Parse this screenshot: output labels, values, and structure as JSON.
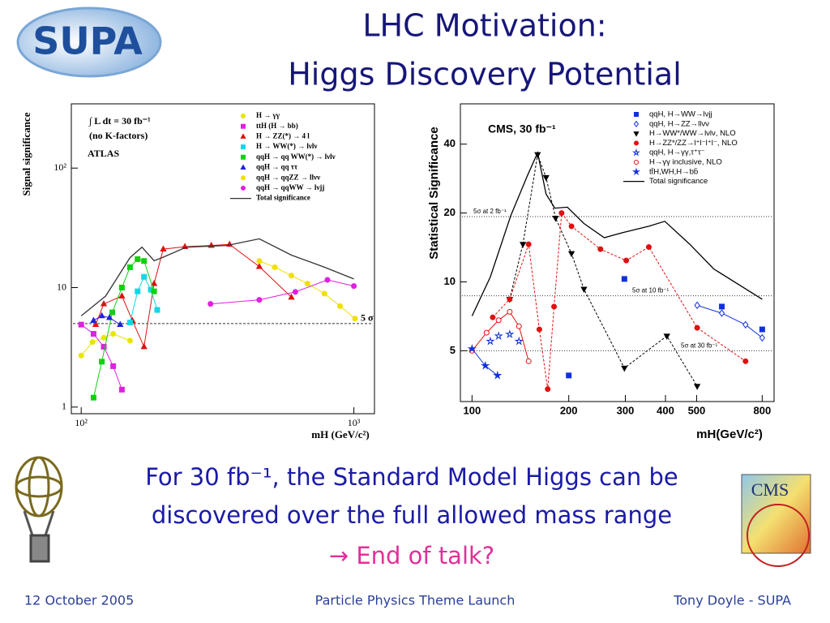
{
  "slide": {
    "logo": "SUPA",
    "title": [
      "LHC Motivation:",
      "Higgs Discovery Potential"
    ],
    "body": [
      "For 30 fb⁻¹, the Standard Model Higgs can be",
      "discovered over the full allowed mass range"
    ],
    "conclusion": "→ End of talk?",
    "cms_logo": "CMS",
    "footer": {
      "date": "12 October 2005",
      "event": "Particle Physics Theme Launch",
      "author": "Tony Doyle - SUPA"
    }
  },
  "chart_data": [
    {
      "type": "line",
      "log_x": true,
      "log_y": true,
      "x_label": "mH (GeV/c²)",
      "y_label": "Signal significance",
      "annotations": [
        "∫ L dt = 30 fb⁻¹",
        "(no K-factors)",
        "ATLAS"
      ],
      "xlim": [
        92,
        1190
      ],
      "ylim": [
        0.88,
        345
      ],
      "xticks": [
        {
          "value": 100,
          "label": "10²"
        },
        {
          "value": 1000,
          "label": "10³"
        }
      ],
      "yticks": [
        1,
        10,
        {
          "value": 100,
          "label": "10²"
        }
      ],
      "reference_lines": [
        {
          "value": 5,
          "label": "5 σ"
        }
      ],
      "series": [
        {
          "name": "H → γγ",
          "color": "#e6e600",
          "marker": "circle",
          "line_style": "solid",
          "x": [
            100,
            110,
            121,
            131,
            151
          ],
          "values": [
            2.7,
            3.5,
            3.8,
            4.1,
            3.6
          ]
        },
        {
          "name": "ttH (H → bb)",
          "color": "#e020e0",
          "marker": "square",
          "line_style": "solid",
          "x": [
            100,
            111,
            121,
            131,
            141
          ],
          "values": [
            4.9,
            4.1,
            3.2,
            2.2,
            1.4
          ]
        },
        {
          "name": "H → ZZ(*) → 4 l",
          "color": "#e01010",
          "marker": "triangle",
          "line_style": "solid",
          "x": [
            113,
            121,
            141,
            154,
            170,
            185,
            200,
            240,
            300,
            350,
            450,
            590
          ],
          "values": [
            4.9,
            7.3,
            8.5,
            5.3,
            3.2,
            10.8,
            21,
            22,
            22.5,
            23,
            15,
            8.3
          ]
        },
        {
          "name": "H → WW(*) → lνlν",
          "color": "#10d8e8",
          "marker": "square",
          "line_style": "solid",
          "x": [
            151,
            161,
            170,
            180,
            190
          ],
          "values": [
            5.1,
            9.3,
            12.3,
            9.6,
            6.5
          ]
        },
        {
          "name": "qqH → qq WW(*) → lνlν",
          "color": "#10d010",
          "marker": "square",
          "line_style": "solid",
          "x": [
            111,
            119,
            130,
            141,
            151,
            161,
            170,
            185
          ],
          "values": [
            1.2,
            2.4,
            6.2,
            10,
            14.8,
            17.3,
            16.7,
            9.3
          ]
        },
        {
          "name": "qqH → qq ττ",
          "color": "#2020e0",
          "marker": "triangle",
          "line_style": "solid",
          "x": [
            111,
            119,
            127,
            139
          ],
          "values": [
            5.3,
            5.8,
            5.6,
            4.9
          ]
        },
        {
          "name": "qqH → qqZZ → llνν",
          "color": "#f0e000",
          "marker": "circle",
          "line_style": "solid",
          "x": [
            450,
            513,
            590,
            676,
            780,
            890,
            1010
          ],
          "values": [
            16.7,
            14.8,
            12.6,
            10.8,
            8.9,
            7.0,
            5.5
          ]
        },
        {
          "name": "qqH → qqWW → lνjj",
          "color": "#e020e0",
          "marker": "circle",
          "line_style": "solid",
          "x": [
            298,
            450,
            610,
            800,
            1000
          ],
          "values": [
            7.3,
            7.9,
            9.2,
            11.6,
            10.3
          ]
        },
        {
          "name": "Total significance",
          "color": "#333333",
          "marker": "none",
          "line_style": "solid",
          "x": [
            100,
            123,
            151,
            167,
            185,
            198,
            243,
            342,
            450,
            590,
            780,
            1000
          ],
          "values": [
            5.8,
            8.5,
            17.8,
            21.8,
            16.8,
            17.8,
            21.8,
            22.5,
            25.6,
            18.7,
            14.8,
            11.8
          ]
        }
      ]
    },
    {
      "type": "line",
      "log_x": true,
      "log_y": true,
      "x_label": "mH(GeV/c²)",
      "y_label": "Statistical Significance",
      "annotations": [
        "CMS, 30 fb⁻¹"
      ],
      "xlim": [
        92,
        871
      ],
      "ylim": [
        3,
        60
      ],
      "xticks": [
        100,
        200,
        300,
        400,
        500,
        800
      ],
      "yticks": [
        5,
        10,
        20,
        40
      ],
      "reference_lines": [
        {
          "value": 19.3,
          "label": "5σ at 2 fb⁻¹"
        },
        {
          "value": 8.7,
          "label": "5σ at 10 fb⁻¹"
        },
        {
          "value": 5,
          "label": "5σ at 30 fb⁻¹"
        }
      ],
      "series": [
        {
          "name": "qqH, H→WW→lνjj",
          "color": "#1030e0",
          "marker": "square",
          "line_style": "none",
          "x": [
            200,
            298,
            599,
            800
          ],
          "values": [
            3.9,
            10.3,
            7.8,
            6.2
          ]
        },
        {
          "name": "qqH, H→ZZ→llνν",
          "color": "#1030e0",
          "marker": "diamond-open",
          "line_style": "solid",
          "x": [
            502,
            599,
            710,
            800
          ],
          "values": [
            7.9,
            7.3,
            6.5,
            5.7
          ]
        },
        {
          "name": "H→WW*/WW→lνlν, NLO",
          "color": "#000000",
          "marker": "triangle-down",
          "line_style": "dashed",
          "x": [
            131,
            144,
            160,
            170,
            182,
            204,
            223,
            298,
            404,
            502
          ],
          "values": [
            8.4,
            14.6,
            36,
            28.6,
            19,
            13.3,
            9.3,
            4.2,
            5.8,
            3.5
          ]
        },
        {
          "name": "H→ZZ*/ZZ→l⁺l⁻l⁺l⁻, NLO",
          "color": "#e01010",
          "marker": "circle",
          "line_style": "dashed",
          "x": [
            116,
            131,
            150,
            162,
            172,
            180,
            190,
            204,
            251,
            302,
            355,
            502,
            710
          ],
          "values": [
            7.0,
            8.4,
            14.6,
            6.2,
            3.4,
            7.8,
            20,
            17.5,
            13.9,
            12.4,
            14.2,
            6.3,
            4.5
          ]
        },
        {
          "name": "qqH, H→γγ,τ⁺τ⁻",
          "color": "#1030e0",
          "marker": "star-open",
          "line_style": "none",
          "x": [
            114,
            121,
            131,
            140
          ],
          "values": [
            5.5,
            5.8,
            5.9,
            5.5
          ]
        },
        {
          "name": "H→γγ inclusive, NLO",
          "color": "#e01010",
          "marker": "circle-open",
          "line_style": "solid",
          "x": [
            100,
            111,
            121,
            131,
            140,
            150
          ],
          "values": [
            5.0,
            6.0,
            6.8,
            7.4,
            6.4,
            4.5
          ]
        },
        {
          "name": "tt̄H,WH,H→bb̄",
          "color": "#1030e0",
          "marker": "star",
          "line_style": "solid",
          "x": [
            100,
            110,
            120
          ],
          "values": [
            5.1,
            4.3,
            3.9
          ]
        },
        {
          "name": "Total significance",
          "color": "#000000",
          "marker": "none",
          "line_style": "solid",
          "x": [
            100,
            114,
            132,
            149,
            160,
            170,
            181,
            198,
            223,
            258,
            298,
            355,
            398,
            476,
            565,
            800
          ],
          "values": [
            7.1,
            10.5,
            19.5,
            29.3,
            36.7,
            24.2,
            21,
            21.2,
            18,
            15.6,
            16.5,
            17.5,
            18.4,
            14.6,
            11.4,
            8.4
          ]
        }
      ]
    }
  ]
}
